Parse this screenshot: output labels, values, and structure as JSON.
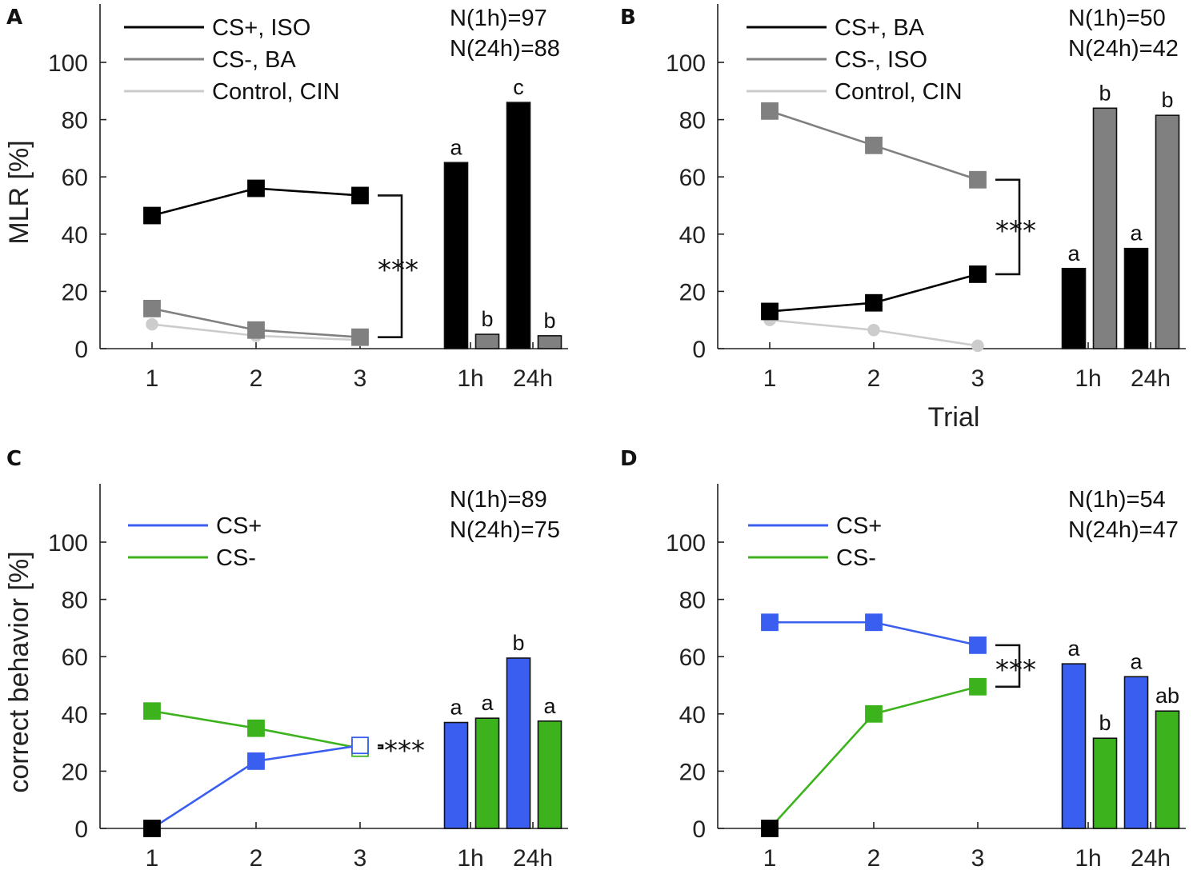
{
  "colors": {
    "black": "#000000",
    "gray": "#808080",
    "lightgray": "#cccccc",
    "blue": "#3a5ff0",
    "green": "#3cb31c"
  },
  "shared_x_ticks": [
    "1",
    "2",
    "3",
    "1h",
    "24h"
  ],
  "chart_data": [
    {
      "panel": "A",
      "type": "line+bar",
      "ylabel": "MLR [%]",
      "xlabel": "",
      "ylim": [
        0,
        120
      ],
      "yticks": [
        0,
        20,
        40,
        60,
        80,
        100
      ],
      "legend": [
        "CS+, ISO",
        "CS-, BA",
        "Control, CIN"
      ],
      "n_text": [
        "N(1h)=97",
        "N(24h)=88"
      ],
      "trials": [
        1,
        2,
        3
      ],
      "series": [
        {
          "name": "CS+, ISO",
          "color": "black",
          "values": [
            46.5,
            56,
            53.5
          ],
          "marker": "square",
          "filled": true
        },
        {
          "name": "CS-, BA",
          "color": "gray",
          "values": [
            14,
            6.5,
            4
          ],
          "marker": "square",
          "filled": true
        },
        {
          "name": "Control, CIN",
          "color": "lightgray",
          "values": [
            8.5,
            4.5,
            3
          ],
          "marker": "circle",
          "filled": true
        }
      ],
      "significance": {
        "text": "***",
        "between": [
          53.5,
          4
        ]
      },
      "bar_groups": [
        {
          "label": "1h",
          "bars": [
            {
              "value": 65,
              "color": "black",
              "letter": "a"
            },
            {
              "value": 5,
              "color": "gray",
              "letter": "b"
            }
          ]
        },
        {
          "label": "24h",
          "bars": [
            {
              "value": 86,
              "color": "black",
              "letter": "c"
            },
            {
              "value": 4.5,
              "color": "gray",
              "letter": "b"
            }
          ]
        }
      ]
    },
    {
      "panel": "B",
      "type": "line+bar",
      "ylabel": "",
      "xlabel": "Trial",
      "ylim": [
        0,
        120
      ],
      "yticks": [
        0,
        20,
        40,
        60,
        80,
        100
      ],
      "legend": [
        "CS+, BA",
        "CS-, ISO",
        "Control, CIN"
      ],
      "n_text": [
        "N(1h)=50",
        "N(24h)=42"
      ],
      "trials": [
        1,
        2,
        3
      ],
      "series": [
        {
          "name": "CS+, BA",
          "color": "black",
          "values": [
            13,
            16,
            26
          ],
          "marker": "square",
          "filled": true
        },
        {
          "name": "CS-, ISO",
          "color": "gray",
          "values": [
            83,
            71,
            59
          ],
          "marker": "square",
          "filled": true
        },
        {
          "name": "Control, CIN",
          "color": "lightgray",
          "values": [
            10,
            6.5,
            1
          ],
          "marker": "circle",
          "filled": true
        }
      ],
      "significance": {
        "text": "***",
        "between": [
          59,
          26
        ]
      },
      "bar_groups": [
        {
          "label": "1h",
          "bars": [
            {
              "value": 28,
              "color": "black",
              "letter": "a"
            },
            {
              "value": 84,
              "color": "gray",
              "letter": "b"
            }
          ]
        },
        {
          "label": "24h",
          "bars": [
            {
              "value": 35,
              "color": "black",
              "letter": "a"
            },
            {
              "value": 81.5,
              "color": "gray",
              "letter": "b"
            }
          ]
        }
      ]
    },
    {
      "panel": "C",
      "type": "line+bar",
      "ylabel": "correct behavior [%]",
      "xlabel": "",
      "ylim": [
        0,
        120
      ],
      "yticks": [
        0,
        20,
        40,
        60,
        80,
        100
      ],
      "legend": [
        "CS+",
        "CS-"
      ],
      "n_text": [
        "N(1h)=89",
        "N(24h)=75"
      ],
      "trials": [
        1,
        2,
        3
      ],
      "series": [
        {
          "name": "CS+",
          "color": "blue",
          "values": [
            0,
            23.5,
            29
          ],
          "marker": "square",
          "filled": [
            false,
            true,
            false
          ],
          "special_first": "black"
        },
        {
          "name": "CS-",
          "color": "green",
          "values": [
            41,
            35,
            28
          ],
          "marker": "square",
          "filled": [
            true,
            true,
            false
          ]
        }
      ],
      "significance": {
        "text": "***",
        "between": [
          29,
          28
        ]
      },
      "bar_groups": [
        {
          "label": "1h",
          "bars": [
            {
              "value": 37,
              "color": "blue",
              "letter": "a"
            },
            {
              "value": 38.5,
              "color": "green",
              "letter": "a"
            }
          ]
        },
        {
          "label": "24h",
          "bars": [
            {
              "value": 59.5,
              "color": "blue",
              "letter": "b"
            },
            {
              "value": 37.5,
              "color": "green",
              "letter": "a"
            }
          ]
        }
      ]
    },
    {
      "panel": "D",
      "type": "line+bar",
      "ylabel": "",
      "xlabel": "",
      "ylim": [
        0,
        120
      ],
      "yticks": [
        0,
        20,
        40,
        60,
        80,
        100
      ],
      "legend": [
        "CS+",
        "CS-"
      ],
      "n_text": [
        "N(1h)=54",
        "N(24h)=47"
      ],
      "trials": [
        1,
        2,
        3
      ],
      "series": [
        {
          "name": "CS+",
          "color": "blue",
          "values": [
            72,
            72,
            64
          ],
          "marker": "square",
          "filled": true
        },
        {
          "name": "CS-",
          "color": "green",
          "values": [
            0,
            40,
            49.5
          ],
          "marker": "square",
          "filled": true,
          "special_first": "black"
        }
      ],
      "significance": {
        "text": "***",
        "between": [
          64,
          49.5
        ]
      },
      "bar_groups": [
        {
          "label": "1h",
          "bars": [
            {
              "value": 57.5,
              "color": "blue",
              "letter": "a"
            },
            {
              "value": 31.5,
              "color": "green",
              "letter": "b"
            }
          ]
        },
        {
          "label": "24h",
          "bars": [
            {
              "value": 53,
              "color": "blue",
              "letter": "a"
            },
            {
              "value": 41,
              "color": "green",
              "letter": "ab"
            }
          ]
        }
      ]
    }
  ]
}
